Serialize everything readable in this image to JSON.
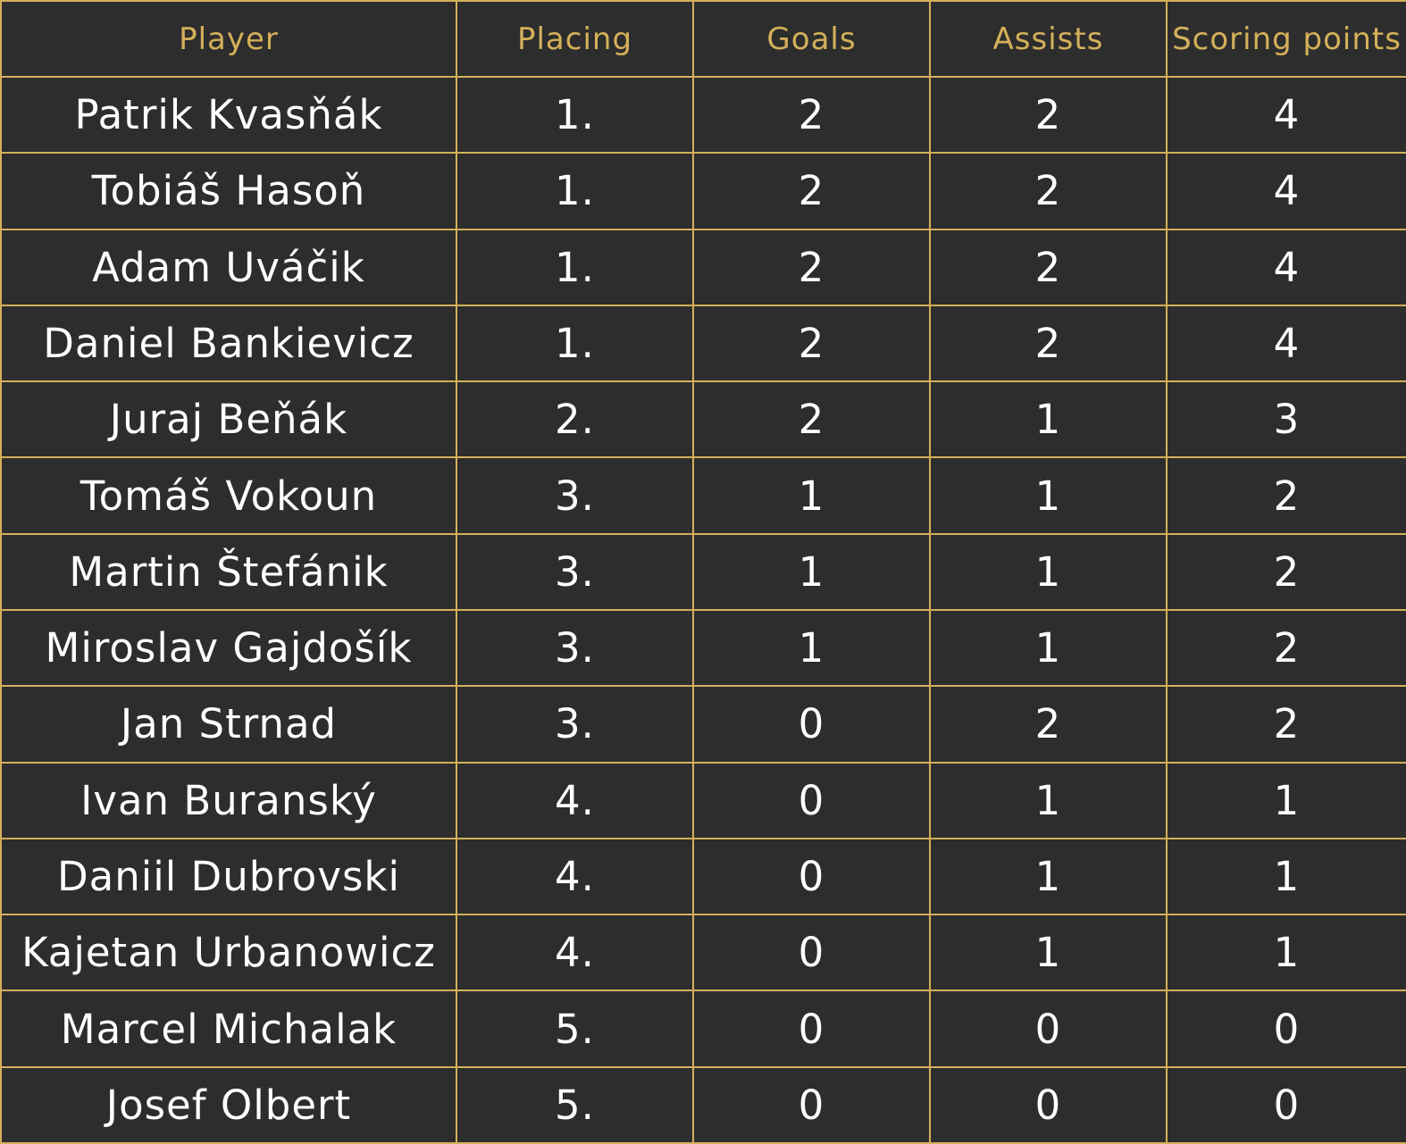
{
  "table": {
    "headers": {
      "player": "Player",
      "placing": "Placing",
      "goals": "Goals",
      "assists": "Assists",
      "points": "Scoring points"
    },
    "rows": [
      {
        "player": "Patrik Kvasňák",
        "placing": "1.",
        "goals": "2",
        "assists": "2",
        "points": "4"
      },
      {
        "player": "Tobiáš Hasoň",
        "placing": "1.",
        "goals": "2",
        "assists": "2",
        "points": "4"
      },
      {
        "player": "Adam Uváčik",
        "placing": "1.",
        "goals": "2",
        "assists": "2",
        "points": "4"
      },
      {
        "player": "Daniel Bankievicz",
        "placing": "1.",
        "goals": "2",
        "assists": "2",
        "points": "4"
      },
      {
        "player": "Juraj Beňák",
        "placing": "2.",
        "goals": "2",
        "assists": "1",
        "points": "3"
      },
      {
        "player": "Tomáš Vokoun",
        "placing": "3.",
        "goals": "1",
        "assists": "1",
        "points": "2"
      },
      {
        "player": "Martin Štefánik",
        "placing": "3.",
        "goals": "1",
        "assists": "1",
        "points": "2"
      },
      {
        "player": "Miroslav Gajdošík",
        "placing": "3.",
        "goals": "1",
        "assists": "1",
        "points": "2"
      },
      {
        "player": "Jan Strnad",
        "placing": "3.",
        "goals": "0",
        "assists": "2",
        "points": "2"
      },
      {
        "player": "Ivan Buranský",
        "placing": "4.",
        "goals": "0",
        "assists": "1",
        "points": "1"
      },
      {
        "player": "Daniil Dubrovski",
        "placing": "4.",
        "goals": "0",
        "assists": "1",
        "points": "1"
      },
      {
        "player": "Kajetan Urbanowicz",
        "placing": "4.",
        "goals": "0",
        "assists": "1",
        "points": "1"
      },
      {
        "player": "Marcel Michalak",
        "placing": "5.",
        "goals": "0",
        "assists": "0",
        "points": "0"
      },
      {
        "player": "Josef Olbert",
        "placing": "5.",
        "goals": "0",
        "assists": "0",
        "points": "0"
      }
    ]
  },
  "colors": {
    "background": "#2d2d2d",
    "gold": "#d4b05a",
    "text": "#ffffff"
  }
}
